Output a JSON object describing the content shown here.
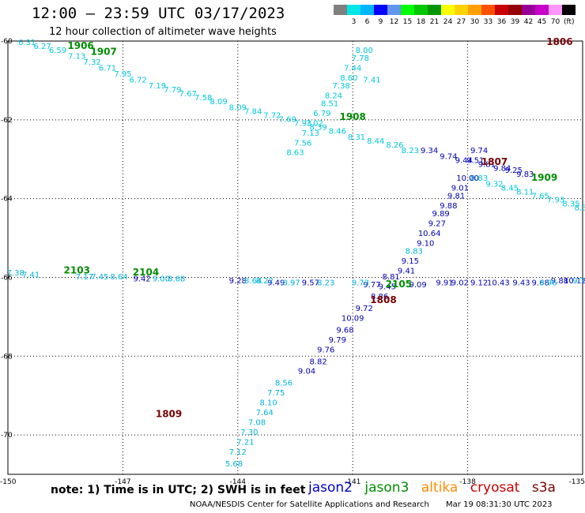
{
  "header": {
    "title": "12:00 – 23:59 UTC 03/17/2023",
    "subtitle": "12 hour collection of altimeter wave heights"
  },
  "scale": {
    "colors": [
      "#808080",
      "#00e6e6",
      "#00b4ff",
      "#0000ff",
      "#6495ed",
      "#00ff00",
      "#00c800",
      "#009600",
      "#ffff00",
      "#ffd200",
      "#ffa000",
      "#ff5000",
      "#c80000",
      "#960000",
      "#960096",
      "#c800c8",
      "#ff96ff",
      "#000000"
    ],
    "labels": [
      "3",
      "6",
      "9",
      "12",
      "15",
      "18",
      "21",
      "24",
      "27",
      "30",
      "33",
      "36",
      "39",
      "42",
      "45",
      "70"
    ],
    "unit": "(ft)"
  },
  "axes": {
    "lon_ticks": [
      "-150",
      "-147",
      "-144",
      "-141",
      "-138",
      "-135"
    ],
    "lat_ticks": [
      "-60",
      "-62",
      "-64",
      "-66",
      "-68",
      "-70"
    ]
  },
  "tracks": [
    {
      "sat": "cryosat",
      "color": "#00c8dc",
      "points": [
        {
          "lon": -149.5,
          "lat": -60.1,
          "v": "6.31"
        },
        {
          "lon": -149.1,
          "lat": -60.2,
          "v": "6.27"
        },
        {
          "lon": -148.7,
          "lat": -60.3,
          "v": "6.59"
        },
        {
          "lon": -148.2,
          "lat": -60.45,
          "v": "7.13"
        },
        {
          "lon": -147.8,
          "lat": -60.6,
          "v": "7.32"
        },
        {
          "lon": -147.4,
          "lat": -60.75,
          "v": "6.71"
        },
        {
          "lon": -147.0,
          "lat": -60.9,
          "v": "7.95"
        },
        {
          "lon": -146.6,
          "lat": -61.05,
          "v": "6.72"
        },
        {
          "lon": -146.1,
          "lat": -61.2,
          "v": "7.19"
        },
        {
          "lon": -145.7,
          "lat": -61.3,
          "v": "7.79"
        },
        {
          "lon": -145.3,
          "lat": -61.4,
          "v": "7.67"
        },
        {
          "lon": -144.9,
          "lat": -61.5,
          "v": "7.58"
        },
        {
          "lon": -144.5,
          "lat": -61.6,
          "v": "8.09"
        },
        {
          "lon": -144.0,
          "lat": -61.75,
          "v": "8.09"
        },
        {
          "lon": -143.6,
          "lat": -61.85,
          "v": "7.84"
        },
        {
          "lon": -143.1,
          "lat": -61.95,
          "v": "7.72"
        },
        {
          "lon": -142.7,
          "lat": -62.05,
          "v": "7.69"
        },
        {
          "lon": -142.3,
          "lat": -62.15,
          "v": "7.93"
        },
        {
          "lon": -141.9,
          "lat": -62.25,
          "v": "8.39"
        },
        {
          "lon": -141.4,
          "lat": -62.35,
          "v": "8.46"
        },
        {
          "lon": -140.9,
          "lat": -62.5,
          "v": "8.31"
        },
        {
          "lon": -140.4,
          "lat": -62.6,
          "v": "8.44"
        },
        {
          "lon": -139.9,
          "lat": -62.7,
          "v": "8.26"
        },
        {
          "lon": -139.5,
          "lat": -62.85,
          "v": "8.23"
        },
        {
          "lon": -140.5,
          "lat": -61.05,
          "v": "7.41"
        },
        {
          "lon": -140.7,
          "lat": -60.3,
          "v": "8.00"
        },
        {
          "lon": -140.8,
          "lat": -60.5,
          "v": "7.78"
        },
        {
          "lon": -141.0,
          "lat": -60.75,
          "v": "7.44"
        },
        {
          "lon": -141.1,
          "lat": -61.0,
          "v": "8.60"
        },
        {
          "lon": -141.3,
          "lat": -61.2,
          "v": "7.38"
        },
        {
          "lon": -141.5,
          "lat": -61.45,
          "v": "8.24"
        },
        {
          "lon": -141.6,
          "lat": -61.65,
          "v": "8.51"
        },
        {
          "lon": -141.8,
          "lat": -61.9,
          "v": "6.79"
        },
        {
          "lon": -142.0,
          "lat": -62.15,
          "v": "7.02"
        },
        {
          "lon": -142.1,
          "lat": -62.4,
          "v": "7.13"
        },
        {
          "lon": -142.3,
          "lat": -62.65,
          "v": "7.56"
        },
        {
          "lon": -142.5,
          "lat": -62.9,
          "v": "8.63"
        },
        {
          "lon": -137.7,
          "lat": -63.55,
          "v": "8.83"
        },
        {
          "lon": -137.3,
          "lat": -63.7,
          "v": "9.32"
        },
        {
          "lon": -136.9,
          "lat": -63.8,
          "v": "8.45"
        },
        {
          "lon": -136.5,
          "lat": -63.9,
          "v": "8.11"
        },
        {
          "lon": -136.1,
          "lat": -64.0,
          "v": "7.65"
        },
        {
          "lon": -135.7,
          "lat": -64.1,
          "v": "7.93"
        },
        {
          "lon": -135.3,
          "lat": -64.2,
          "v": "8.35"
        },
        {
          "lon": -135.05,
          "lat": -64.3,
          "v": "8.3"
        }
      ]
    },
    {
      "sat": "jason2",
      "color": "#0000b4",
      "points": [
        {
          "lon": -139.0,
          "lat": -62.85,
          "v": "9.34"
        },
        {
          "lon": -138.5,
          "lat": -63.0,
          "v": "9.74"
        },
        {
          "lon": -138.1,
          "lat": -63.1,
          "v": "9.44"
        },
        {
          "lon": -137.5,
          "lat": -63.2,
          "v": "9.81"
        },
        {
          "lon": -137.1,
          "lat": -63.3,
          "v": "9.84"
        },
        {
          "lon": -136.8,
          "lat": -63.35,
          "v": "9.25"
        },
        {
          "lon": -136.5,
          "lat": -63.45,
          "v": "9.83"
        },
        {
          "lon": -137.7,
          "lat": -62.85,
          "v": "9.74"
        },
        {
          "lon": -137.8,
          "lat": -63.1,
          "v": "9.51"
        },
        {
          "lon": -138.0,
          "lat": -63.55,
          "v": "10.00"
        },
        {
          "lon": -138.2,
          "lat": -63.8,
          "v": "9.01"
        },
        {
          "lon": -138.3,
          "lat": -64.0,
          "v": "9.81"
        },
        {
          "lon": -138.5,
          "lat": -64.25,
          "v": "9.88"
        },
        {
          "lon": -138.7,
          "lat": -64.45,
          "v": "9.89"
        },
        {
          "lon": -138.8,
          "lat": -64.7,
          "v": "9.27"
        },
        {
          "lon": -139.0,
          "lat": -64.95,
          "v": "10.64"
        },
        {
          "lon": -139.1,
          "lat": -65.2,
          "v": "9.10"
        },
        {
          "lon": -139.5,
          "lat": -65.65,
          "v": "9.15"
        },
        {
          "lon": -139.6,
          "lat": -65.9,
          "v": "9.41"
        },
        {
          "lon": -140.0,
          "lat": -66.05,
          "v": "8.81"
        },
        {
          "lon": -140.1,
          "lat": -66.3,
          "v": "9.45"
        },
        {
          "lon": -140.3,
          "lat": -66.55,
          "v": "8.86"
        },
        {
          "lon": -140.7,
          "lat": -66.85,
          "v": "9.72"
        },
        {
          "lon": -141.0,
          "lat": -67.1,
          "v": "10.09"
        },
        {
          "lon": -141.2,
          "lat": -67.4,
          "v": "9.68"
        },
        {
          "lon": -141.4,
          "lat": -67.65,
          "v": "9.79"
        },
        {
          "lon": -141.7,
          "lat": -67.9,
          "v": "9.76"
        },
        {
          "lon": -141.9,
          "lat": -68.2,
          "v": "8.82"
        },
        {
          "lon": -142.2,
          "lat": -68.45,
          "v": "9.04"
        },
        {
          "lon": -146.5,
          "lat": -66.1,
          "v": "9.42"
        },
        {
          "lon": -144.0,
          "lat": -66.15,
          "v": "9.28"
        },
        {
          "lon": -143.0,
          "lat": -66.2,
          "v": "9.49"
        },
        {
          "lon": -142.1,
          "lat": -66.2,
          "v": "9.57"
        },
        {
          "lon": -140.5,
          "lat": -66.25,
          "v": "9.77"
        },
        {
          "lon": -139.3,
          "lat": -66.25,
          "v": "9.09"
        },
        {
          "lon": -138.6,
          "lat": -66.2,
          "v": "9.91"
        },
        {
          "lon": -138.2,
          "lat": -66.2,
          "v": "9.02"
        },
        {
          "lon": -137.7,
          "lat": -66.2,
          "v": "9.12"
        },
        {
          "lon": -137.2,
          "lat": -66.2,
          "v": "10.43"
        },
        {
          "lon": -136.6,
          "lat": -66.2,
          "v": "9.43"
        },
        {
          "lon": -136.1,
          "lat": -66.2,
          "v": "9.68"
        },
        {
          "lon": -135.6,
          "lat": -66.15,
          "v": "9.88"
        },
        {
          "lon": -135.2,
          "lat": -66.15,
          "v": "10.12"
        }
      ]
    },
    {
      "sat": "cryosat-low",
      "color": "#00b4dc",
      "points": [
        {
          "lon": -142.8,
          "lat": -68.75,
          "v": "8.56"
        },
        {
          "lon": -143.0,
          "lat": -69.0,
          "v": "7.75"
        },
        {
          "lon": -143.2,
          "lat": -69.25,
          "v": "8.10"
        },
        {
          "lon": -143.3,
          "lat": -69.5,
          "v": "7.64"
        },
        {
          "lon": -143.5,
          "lat": -69.75,
          "v": "7.08"
        },
        {
          "lon": -143.7,
          "lat": -70.0,
          "v": "7.30"
        },
        {
          "lon": -143.8,
          "lat": -70.25,
          "v": "7.21"
        },
        {
          "lon": -144.0,
          "lat": -70.5,
          "v": "7.12"
        },
        {
          "lon": -144.1,
          "lat": -70.8,
          "v": "5.68"
        },
        {
          "lon": -149.8,
          "lat": -65.95,
          "v": "7.38"
        },
        {
          "lon": -149.4,
          "lat": -66.0,
          "v": "7.41"
        },
        {
          "lon": -148.0,
          "lat": -66.05,
          "v": "7.17"
        },
        {
          "lon": -147.6,
          "lat": -66.05,
          "v": "7.45"
        },
        {
          "lon": -147.1,
          "lat": -66.05,
          "v": "8.64"
        },
        {
          "lon": -146.0,
          "lat": -66.1,
          "v": "9.00"
        },
        {
          "lon": -145.6,
          "lat": -66.1,
          "v": "8.68"
        },
        {
          "lon": -143.6,
          "lat": -66.15,
          "v": "8.64"
        },
        {
          "lon": -143.3,
          "lat": -66.15,
          "v": "8.22"
        },
        {
          "lon": -142.6,
          "lat": -66.2,
          "v": "8.97"
        },
        {
          "lon": -141.7,
          "lat": -66.2,
          "v": "8.23"
        },
        {
          "lon": -140.8,
          "lat": -66.2,
          "v": "9.73"
        },
        {
          "lon": -139.4,
          "lat": -65.4,
          "v": "8.83"
        },
        {
          "lon": -135.1,
          "lat": -66.15,
          "v": "9.7"
        },
        {
          "lon": -135.9,
          "lat": -66.2,
          "v": "8.96"
        }
      ]
    }
  ],
  "orbit_labels": [
    {
      "lon": -148.1,
      "lat": -60.2,
      "text": "1906",
      "color": "#008c00"
    },
    {
      "lon": -147.5,
      "lat": -60.35,
      "text": "1907",
      "color": "#008c00"
    },
    {
      "lon": -141.0,
      "lat": -62.0,
      "text": "1908",
      "color": "#008c00"
    },
    {
      "lon": -136.0,
      "lat": -63.55,
      "text": "1909",
      "color": "#008c00"
    },
    {
      "lon": -148.2,
      "lat": -65.9,
      "text": "2103",
      "color": "#008c00"
    },
    {
      "lon": -146.4,
      "lat": -65.95,
      "text": "2104",
      "color": "#008c00"
    },
    {
      "lon": -139.8,
      "lat": -66.25,
      "text": "2105",
      "color": "#008c00"
    },
    {
      "lon": -135.6,
      "lat": -60.1,
      "text": "1806",
      "color": "#780000"
    },
    {
      "lon": -137.3,
      "lat": -63.15,
      "text": "1807",
      "color": "#780000"
    },
    {
      "lon": -140.2,
      "lat": -66.65,
      "text": "1808",
      "color": "#780000"
    },
    {
      "lon": -145.8,
      "lat": -69.55,
      "text": "1809",
      "color": "#780000"
    }
  ],
  "note": "note:  1) Time is in UTC;  2) SWH is in feet",
  "satellites": [
    {
      "name": "jason2",
      "color": "#0000c8"
    },
    {
      "name": "jason3",
      "color": "#008c00"
    },
    {
      "name": "altika",
      "color": "#ff8c00"
    },
    {
      "name": "cryosat",
      "color": "#c80000"
    },
    {
      "name": "s3a",
      "color": "#780000"
    }
  ],
  "credit": {
    "org": "NOAA/NESDIS Center for Satellite Applications and Research",
    "timestamp": "Mar 19 08:31:30 UTC 2023"
  }
}
